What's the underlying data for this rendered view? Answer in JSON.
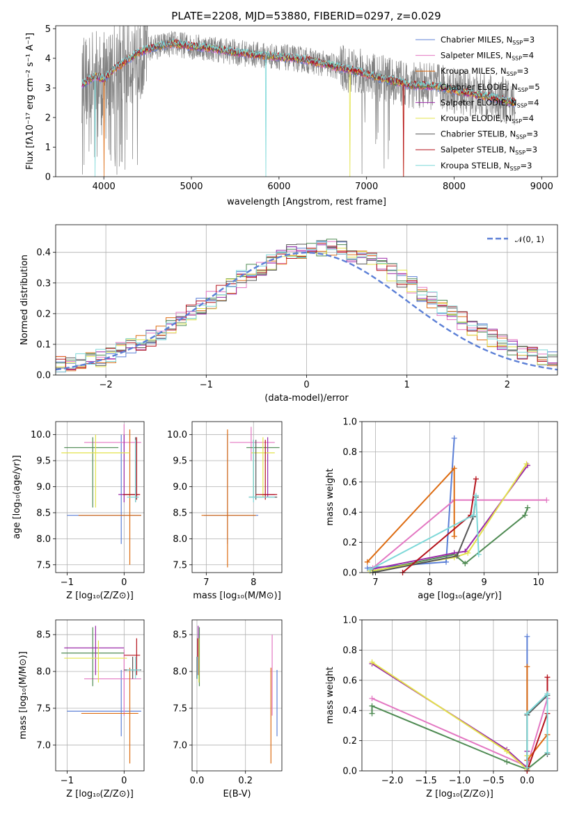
{
  "colors": [
    "#5b7fd6",
    "#e377c2",
    "#dd6b10",
    "#4e8a52",
    "#9a27a8",
    "#e3e34a",
    "#555555",
    "#b5121b",
    "#7dd8d8"
  ],
  "chart_data": [
    {
      "id": "spectrum",
      "type": "line",
      "title": "PLATE=2208, MJD=53880, FIBERID=0297, z=0.029",
      "xlabel": "wavelength [Angstrom, rest frame]",
      "ylabel": "Flux [fλ10⁻¹⁷ erg cm⁻² s⁻¹ A⁻¹]",
      "xlim": [
        3450,
        9180
      ],
      "ylim": [
        0,
        5.1
      ],
      "xticks": [
        4000,
        5000,
        6000,
        7000,
        8000,
        9000
      ],
      "yticks": [
        0,
        1,
        2,
        3,
        4,
        5
      ],
      "series": [
        {
          "name": "Chabrier MILES, N_SSP=3",
          "label_main": "Chabrier MILES, N",
          "label_sub": "SSP",
          "label_tail": "=3"
        },
        {
          "name": "Salpeter MILES, N_SSP=4",
          "label_main": "Salpeter MILES, N",
          "label_sub": "SSP",
          "label_tail": "=4"
        },
        {
          "name": "Kroupa MILES, N_SSP=3",
          "label_main": "Kroupa MILES, N",
          "label_sub": "SSP",
          "label_tail": "=3"
        },
        {
          "name": "Chabrier ELODIE, N_SSP=5",
          "label_main": "Chabrier ELODIE, N",
          "label_sub": "SSP",
          "label_tail": "=5"
        },
        {
          "name": "Salpeter ELODIE, N_SSP=4",
          "label_main": "Salpeter ELODIE, N",
          "label_sub": "SSP",
          "label_tail": "=4"
        },
        {
          "name": "Kroupa ELODIE, N_SSP=4",
          "label_main": "Kroupa ELODIE, N",
          "label_sub": "SSP",
          "label_tail": "=4"
        },
        {
          "name": "Chabrier STELIB, N_SSP=3",
          "label_main": "Chabrier STELIB, N",
          "label_sub": "SSP",
          "label_tail": "=3"
        },
        {
          "name": "Salpeter STELIB, N_SSP=3",
          "label_main": "Salpeter STELIB, N",
          "label_sub": "SSP",
          "label_tail": "=3"
        },
        {
          "name": "Kroupa STELIB, N_SSP=3",
          "label_main": "Kroupa STELIB, N",
          "label_sub": "SSP",
          "label_tail": "=3"
        }
      ],
      "continuum": [
        [
          3750,
          3.1
        ],
        [
          3900,
          3.4
        ],
        [
          4000,
          3.3
        ],
        [
          4100,
          3.6
        ],
        [
          4250,
          3.9
        ],
        [
          4400,
          4.2
        ],
        [
          4600,
          4.4
        ],
        [
          4800,
          4.5
        ],
        [
          5000,
          4.4
        ],
        [
          5200,
          4.35
        ],
        [
          5500,
          4.2
        ],
        [
          5800,
          4.1
        ],
        [
          6000,
          4.05
        ],
        [
          6300,
          3.95
        ],
        [
          6600,
          3.75
        ],
        [
          6900,
          3.55
        ],
        [
          7200,
          3.3
        ],
        [
          7500,
          3.1
        ],
        [
          7800,
          3.05
        ],
        [
          8100,
          2.85
        ],
        [
          8400,
          2.7
        ],
        [
          8700,
          2.5
        ]
      ],
      "data_range": [
        3750,
        8700
      ],
      "legend": "upper right"
    },
    {
      "id": "residuals",
      "type": "line",
      "xlabel": "(data-model)/error",
      "ylabel": "Normed distribution",
      "xlim": [
        -2.5,
        2.5
      ],
      "ylim": [
        0,
        0.49
      ],
      "xticks": [
        -2,
        -1,
        0,
        1,
        2
      ],
      "yticks": [
        0.0,
        0.1,
        0.2,
        0.3,
        0.4
      ],
      "gaussian_label": "𝒩(0, 1)",
      "legend": "upper right",
      "bins": [
        -2.5,
        2.5,
        50
      ]
    },
    {
      "id": "age_vs_Z",
      "type": "scatter",
      "xlabel": "Z [log₁₀(Z/Z⊙)]",
      "ylabel": "age  [log₁₀(age/yr)]",
      "xlim": [
        -1.2,
        0.35
      ],
      "ylim": [
        7.35,
        10.25
      ],
      "xticks": [
        -1,
        0
      ],
      "yticks": [
        7.5,
        8.0,
        8.5,
        9.0,
        9.5,
        10.0
      ],
      "points": [
        {
          "c": 0,
          "x": -0.05,
          "y": 8.45,
          "xe": [
            -1.0,
            0.3
          ],
          "ye": [
            7.9,
            10.0
          ]
        },
        {
          "c": 1,
          "x": 0.0,
          "y": 9.85,
          "xe": [
            -0.7,
            0.3
          ],
          "ye": [
            9.7,
            10.2
          ]
        },
        {
          "c": 2,
          "x": 0.1,
          "y": 8.45,
          "xe": [
            -0.8,
            0.3
          ],
          "ye": [
            7.5,
            10.1
          ]
        },
        {
          "c": 3,
          "x": -0.55,
          "y": 9.75,
          "xe": [
            -1.05,
            -0.1
          ],
          "ye": [
            8.6,
            9.95
          ]
        },
        {
          "c": 4,
          "x": 0.0,
          "y": 8.85,
          "xe": [
            -0.1,
            0.25
          ],
          "ye": [
            8.7,
            10.0
          ]
        },
        {
          "c": 5,
          "x": -0.5,
          "y": 9.65,
          "xe": [
            -1.1,
            0.1
          ],
          "ye": [
            8.6,
            10.0
          ]
        },
        {
          "c": 6,
          "x": 0.2,
          "y": 8.85,
          "xe": [
            0.0,
            0.25
          ],
          "ye": [
            8.7,
            9.95
          ]
        },
        {
          "c": 7,
          "x": 0.22,
          "y": 8.85,
          "xe": [
            -0.02,
            0.28
          ],
          "ye": [
            8.75,
            9.95
          ]
        },
        {
          "c": 8,
          "x": 0.2,
          "y": 8.8,
          "xe": [
            0.05,
            0.26
          ],
          "ye": [
            8.7,
            9.9
          ]
        }
      ]
    },
    {
      "id": "age_vs_mass",
      "type": "scatter",
      "xlabel": "mass [log₁₀(M/M⊙)]",
      "ylabel": "",
      "xlim": [
        6.7,
        8.6
      ],
      "ylim": [
        7.35,
        10.25
      ],
      "xticks": [
        7,
        8
      ],
      "yticks": [
        7.5,
        8.0,
        8.5,
        9.0,
        9.5,
        10.0
      ],
      "points": [
        {
          "c": 0,
          "x": 7.45,
          "y": 8.45,
          "xe": [
            6.95,
            8.1
          ],
          "ye": [
            7.9,
            10.0
          ]
        },
        {
          "c": 1,
          "x": 7.95,
          "y": 9.85,
          "xe": [
            7.5,
            8.45
          ],
          "ye": [
            9.5,
            10.15
          ]
        },
        {
          "c": 2,
          "x": 7.45,
          "y": 8.45,
          "xe": [
            6.9,
            8.05
          ],
          "ye": [
            7.45,
            10.1
          ]
        },
        {
          "c": 3,
          "x": 8.0,
          "y": 9.75,
          "xe": [
            7.85,
            8.55
          ],
          "ye": [
            8.8,
            9.9
          ]
        },
        {
          "c": 4,
          "x": 8.3,
          "y": 8.85,
          "xe": [
            8.2,
            8.45
          ],
          "ye": [
            8.8,
            9.95
          ]
        },
        {
          "c": 5,
          "x": 8.2,
          "y": 9.65,
          "xe": [
            7.95,
            8.45
          ],
          "ye": [
            8.8,
            9.95
          ]
        },
        {
          "c": 6,
          "x": 8.05,
          "y": 8.8,
          "xe": [
            7.9,
            8.5
          ],
          "ye": [
            8.75,
            9.9
          ]
        },
        {
          "c": 7,
          "x": 8.25,
          "y": 8.85,
          "xe": [
            8.05,
            8.5
          ],
          "ye": [
            8.75,
            9.9
          ]
        },
        {
          "c": 8,
          "x": 8.0,
          "y": 8.8,
          "xe": [
            7.9,
            8.45
          ],
          "ye": [
            8.7,
            9.9
          ]
        }
      ]
    },
    {
      "id": "massweight_vs_age",
      "type": "line",
      "xlabel": "age  [log₁₀(age/yr)]",
      "ylabel": "mass weight",
      "xlim": [
        6.75,
        10.35
      ],
      "ylim": [
        0,
        1
      ],
      "xticks": [
        7,
        8,
        9,
        10
      ],
      "yticks": [
        0.0,
        0.2,
        0.4,
        0.6,
        0.8,
        1.0
      ],
      "series": [
        {
          "c": 0,
          "x": [
            6.85,
            8.3,
            8.45
          ],
          "y": [
            0.03,
            0.07,
            0.89
          ]
        },
        {
          "c": 1,
          "x": 6.95,
          "x2": [
            8.45,
            10.15
          ],
          "y": [
            0.03,
            0.48,
            0.48
          ],
          "xs": [
            6.95,
            8.45,
            10.15
          ]
        },
        {
          "c": 2,
          "x": [
            6.85,
            8.45,
            8.45
          ],
          "y": [
            0.07,
            0.69,
            0.24
          ]
        },
        {
          "c": 3,
          "x": [
            6.95,
            8.45,
            8.65,
            9.75,
            9.8
          ],
          "y": [
            0.01,
            0.12,
            0.06,
            0.38,
            0.43
          ]
        },
        {
          "c": 4,
          "x": [
            6.9,
            8.45,
            8.65,
            9.8
          ],
          "y": [
            0.02,
            0.13,
            0.14,
            0.71
          ]
        },
        {
          "c": 5,
          "x": [
            6.9,
            8.45,
            8.7,
            9.78
          ],
          "y": [
            0.01,
            0.1,
            0.13,
            0.72
          ]
        },
        {
          "c": 6,
          "x": [
            6.95,
            8.5,
            8.8,
            8.85
          ],
          "y": [
            0.0,
            0.11,
            0.37,
            0.5
          ]
        },
        {
          "c": 7,
          "x": [
            7.5,
            8.75,
            8.85
          ],
          "y": [
            0.0,
            0.38,
            0.62
          ]
        },
        {
          "c": 8,
          "x": [
            6.9,
            8.8,
            8.85,
            8.9
          ],
          "y": [
            0.02,
            0.38,
            0.51,
            0.12
          ]
        }
      ]
    },
    {
      "id": "mass_vs_Z",
      "type": "scatter",
      "xlabel": "Z [log₁₀(Z/Z⊙)]",
      "ylabel": "mass [log₁₀(M/M⊙)]",
      "xlim": [
        -1.2,
        0.35
      ],
      "ylim": [
        6.65,
        8.7
      ],
      "xticks": [
        -1,
        0
      ],
      "yticks": [
        7.0,
        7.5,
        8.0,
        8.5
      ],
      "points": [
        {
          "c": 0,
          "x": -0.05,
          "y": 7.46,
          "xe": [
            -1.0,
            0.3
          ],
          "ye": [
            7.12,
            8.02
          ]
        },
        {
          "c": 1,
          "x": 0.0,
          "y": 7.9,
          "xe": [
            -0.7,
            0.3
          ],
          "ye": [
            7.4,
            8.3
          ]
        },
        {
          "c": 2,
          "x": 0.1,
          "y": 7.43,
          "xe": [
            -0.75,
            0.25
          ],
          "ye": [
            6.75,
            8.05
          ]
        },
        {
          "c": 3,
          "x": -0.55,
          "y": 8.25,
          "xe": [
            -1.1,
            0.0
          ],
          "ye": [
            7.8,
            8.6
          ]
        },
        {
          "c": 4,
          "x": -0.5,
          "y": 8.32,
          "xe": [
            -1.05,
            0.0
          ],
          "ye": [
            7.95,
            8.62
          ]
        },
        {
          "c": 5,
          "x": -0.45,
          "y": 8.18,
          "xe": [
            -1.05,
            0.05
          ],
          "ye": [
            7.85,
            8.42
          ]
        },
        {
          "c": 6,
          "x": 0.15,
          "y": 8.02,
          "xe": [
            0.0,
            0.3
          ],
          "ye": [
            7.9,
            8.2
          ]
        },
        {
          "c": 7,
          "x": 0.22,
          "y": 8.22,
          "xe": [
            0.0,
            0.28
          ],
          "ye": [
            7.95,
            8.45
          ]
        },
        {
          "c": 8,
          "x": 0.2,
          "y": 8.02,
          "xe": [
            0.05,
            0.28
          ],
          "ye": [
            7.9,
            8.2
          ]
        }
      ]
    },
    {
      "id": "mass_vs_ebv",
      "type": "scatter",
      "xlabel": "E(B-V)",
      "ylabel": "",
      "xlim": [
        -0.02,
        0.35
      ],
      "ylim": [
        6.65,
        8.7
      ],
      "xticks": [
        0.0,
        0.2
      ],
      "yticks": [
        7.0,
        7.5,
        8.0,
        8.5
      ],
      "points": [
        {
          "c": 0,
          "x": 0.33,
          "y": 7.5,
          "ye": [
            7.12,
            8.02
          ]
        },
        {
          "c": 1,
          "x": 0.31,
          "y": 7.9,
          "ye": [
            7.4,
            8.5
          ]
        },
        {
          "c": 2,
          "x": 0.305,
          "y": 7.4,
          "ye": [
            6.75,
            8.05
          ]
        },
        {
          "c": 3,
          "x": 0.01,
          "y": 8.25,
          "ye": [
            7.8,
            8.6
          ]
        },
        {
          "c": 4,
          "x": 0.005,
          "y": 8.3,
          "ye": [
            7.95,
            8.62
          ]
        },
        {
          "c": 5,
          "x": 0.008,
          "y": 8.2,
          "ye": [
            7.85,
            8.45
          ]
        },
        {
          "c": 6,
          "x": 0.0,
          "y": 8.05,
          "ye": [
            7.9,
            8.2
          ]
        },
        {
          "c": 7,
          "x": 0.003,
          "y": 8.2,
          "ye": [
            7.95,
            8.45
          ]
        },
        {
          "c": 8,
          "x": 0.002,
          "y": 8.02,
          "ye": [
            7.9,
            8.2
          ]
        }
      ]
    },
    {
      "id": "massweight_vs_Z",
      "type": "line",
      "xlabel": "Z [log₁₀(Z/Z⊙)]",
      "ylabel": "mass weight",
      "xlim": [
        -2.45,
        0.45
      ],
      "ylim": [
        0,
        1
      ],
      "xticks": [
        -2.0,
        -1.5,
        -1.0,
        -0.5,
        0.0
      ],
      "yticks": [
        0.0,
        0.2,
        0.4,
        0.6,
        0.8,
        1.0
      ],
      "series": [
        {
          "c": 0,
          "x": [
            0.0,
            0.0,
            0.0
          ],
          "y": [
            0.89,
            0.03,
            0.07
          ]
        },
        {
          "c": 1,
          "x": [
            -2.3,
            0.0,
            0.3
          ],
          "y": [
            0.48,
            0.03,
            0.48
          ]
        },
        {
          "c": 2,
          "x": [
            0.0,
            0.0,
            0.3
          ],
          "y": [
            0.69,
            0.07,
            0.24
          ]
        },
        {
          "c": 3,
          "x": [
            -2.3,
            -2.3,
            -0.3,
            0.0,
            0.3
          ],
          "y": [
            0.38,
            0.43,
            0.06,
            0.01,
            0.12
          ]
        },
        {
          "c": 4,
          "x": [
            -2.3,
            -0.3,
            0.0,
            0.0
          ],
          "y": [
            0.71,
            0.14,
            0.02,
            0.13
          ]
        },
        {
          "c": 5,
          "x": [
            -2.3,
            -0.3,
            0.0,
            0.0
          ],
          "y": [
            0.72,
            0.13,
            0.01,
            0.1
          ]
        },
        {
          "c": 6,
          "x": [
            0.0,
            0.0,
            0.3,
            0.3
          ],
          "y": [
            0.0,
            0.37,
            0.5,
            0.11
          ]
        },
        {
          "c": 7,
          "x": [
            0.0,
            0.3,
            0.3
          ],
          "y": [
            0.0,
            0.38,
            0.62
          ]
        },
        {
          "c": 8,
          "x": [
            0.0,
            0.0,
            0.3,
            0.3
          ],
          "y": [
            0.02,
            0.38,
            0.51,
            0.12
          ]
        }
      ]
    }
  ]
}
